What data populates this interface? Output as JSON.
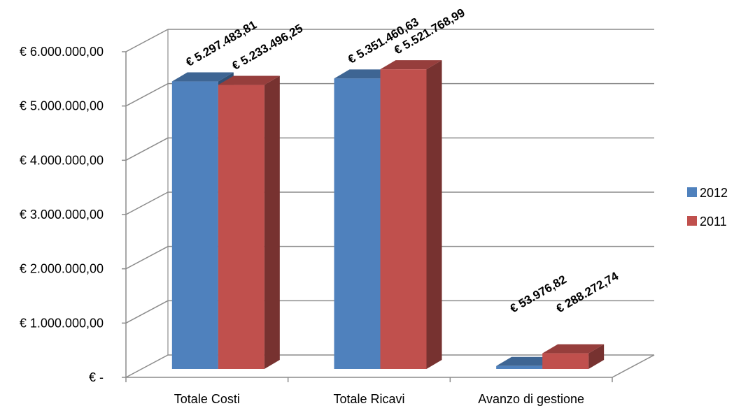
{
  "chart_data": {
    "type": "bar",
    "style": "3d-clustered-column",
    "categories": [
      "Totale Costi",
      "Totale Ricavi",
      "Avanzo di gestione"
    ],
    "series": [
      {
        "name": "2012",
        "color": "#4F81BD",
        "values": [
          5297483.81,
          5351460.63,
          53976.82
        ],
        "labels": [
          "€ 5.297.483,81",
          "€ 5.351.460,63",
          "€ 53.976,82"
        ]
      },
      {
        "name": "2011",
        "color": "#C0504D",
        "values": [
          5233496.25,
          5521768.99,
          288272.74
        ],
        "labels": [
          "€ 5.233.496,25",
          "€ 5.521.768,99",
          "€ 288.272,74"
        ]
      }
    ],
    "y_ticks": [
      0,
      1000000,
      2000000,
      3000000,
      4000000,
      5000000,
      6000000
    ],
    "y_tick_labels": [
      "€ -",
      "€ 1.000.000,00",
      "€ 2.000.000,00",
      "€ 3.000.000,00",
      "€ 4.000.000,00",
      "€ 5.000.000,00",
      "€ 6.000.000,00"
    ],
    "ylim": [
      0,
      6000000
    ],
    "title": "",
    "xlabel": "",
    "ylabel": "",
    "grid": true,
    "legend_position": "right"
  }
}
